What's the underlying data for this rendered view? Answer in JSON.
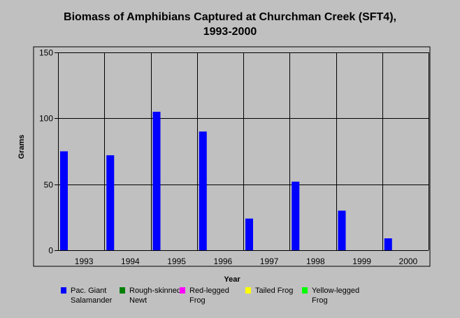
{
  "chart_data": {
    "type": "bar",
    "title_line1": "Biomass of Amphibians Captured at Churchman Creek (SFT4),",
    "title_line2": "1993-2000",
    "xlabel": "Year",
    "ylabel": "Grams",
    "ylim": [
      0,
      150
    ],
    "yticks": [
      "0",
      "50",
      "100",
      "150"
    ],
    "grid": true,
    "legend_placement": "bottom",
    "categories": [
      "1993",
      "1994",
      "1995",
      "1996",
      "1997",
      "1998",
      "1999",
      "2000"
    ],
    "series": [
      {
        "name": "Pac. Giant Salamander",
        "color": "#0000ff",
        "values": [
          75,
          72,
          105,
          90,
          24,
          52,
          30,
          9
        ]
      },
      {
        "name": "Rough-skinned Newt",
        "color": "#008000",
        "values": [
          0,
          0,
          0,
          0,
          0,
          0,
          0,
          0
        ]
      },
      {
        "name": "Red-legged Frog",
        "color": "#ff00ff",
        "values": [
          0,
          0,
          0,
          0,
          0,
          0,
          0,
          0
        ]
      },
      {
        "name": "Tailed Frog",
        "color": "#ffff00",
        "values": [
          0,
          0,
          0,
          0,
          0,
          0,
          0,
          0
        ]
      },
      {
        "name": "Yellow-legged Frog",
        "color": "#00ff00",
        "values": [
          0,
          0,
          0,
          0,
          0,
          0,
          0,
          0
        ]
      }
    ]
  }
}
